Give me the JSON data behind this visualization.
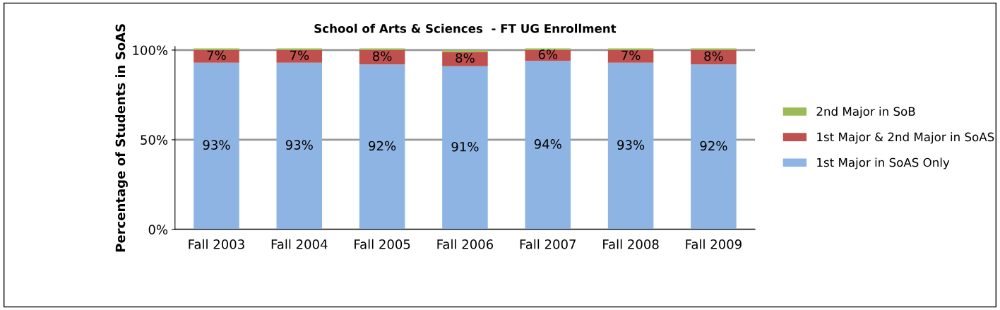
{
  "chart_data": {
    "type": "bar",
    "stacked": true,
    "title": "School of Arts & Sciences  - FT UG Enrollment",
    "ylabel": "Percentage of Students in SoAS",
    "categories": [
      "Fall 2003",
      "Fall 2004",
      "Fall 2005",
      "Fall 2006",
      "Fall 2007",
      "Fall 2008",
      "Fall 2009"
    ],
    "series": [
      {
        "name": "1st Major in SoAS Only",
        "color": "#8eb4e3",
        "values": [
          93,
          93,
          92,
          91,
          94,
          93,
          92
        ],
        "value_labels": [
          "93%",
          "93%",
          "92%",
          "91%",
          "94%",
          "93%",
          "92%"
        ]
      },
      {
        "name": "1st Major & 2nd Major in SoAS",
        "color": "#c0504d",
        "values": [
          7,
          7,
          8,
          8,
          6,
          7,
          8
        ],
        "value_labels": [
          "7%",
          "7%",
          "8%",
          "8%",
          "6%",
          "7%",
          "8%"
        ]
      },
      {
        "name": "2nd Major in SoB",
        "color": "#9bbb59",
        "values": [
          1,
          1,
          1,
          1,
          1,
          1,
          1
        ]
      }
    ],
    "ylim": [
      0,
      102
    ],
    "yticks": [
      {
        "value": 0,
        "label": "0%"
      },
      {
        "value": 50,
        "label": "50%"
      },
      {
        "value": 100,
        "label": "100%"
      }
    ],
    "grid": "y",
    "legend": "right"
  }
}
